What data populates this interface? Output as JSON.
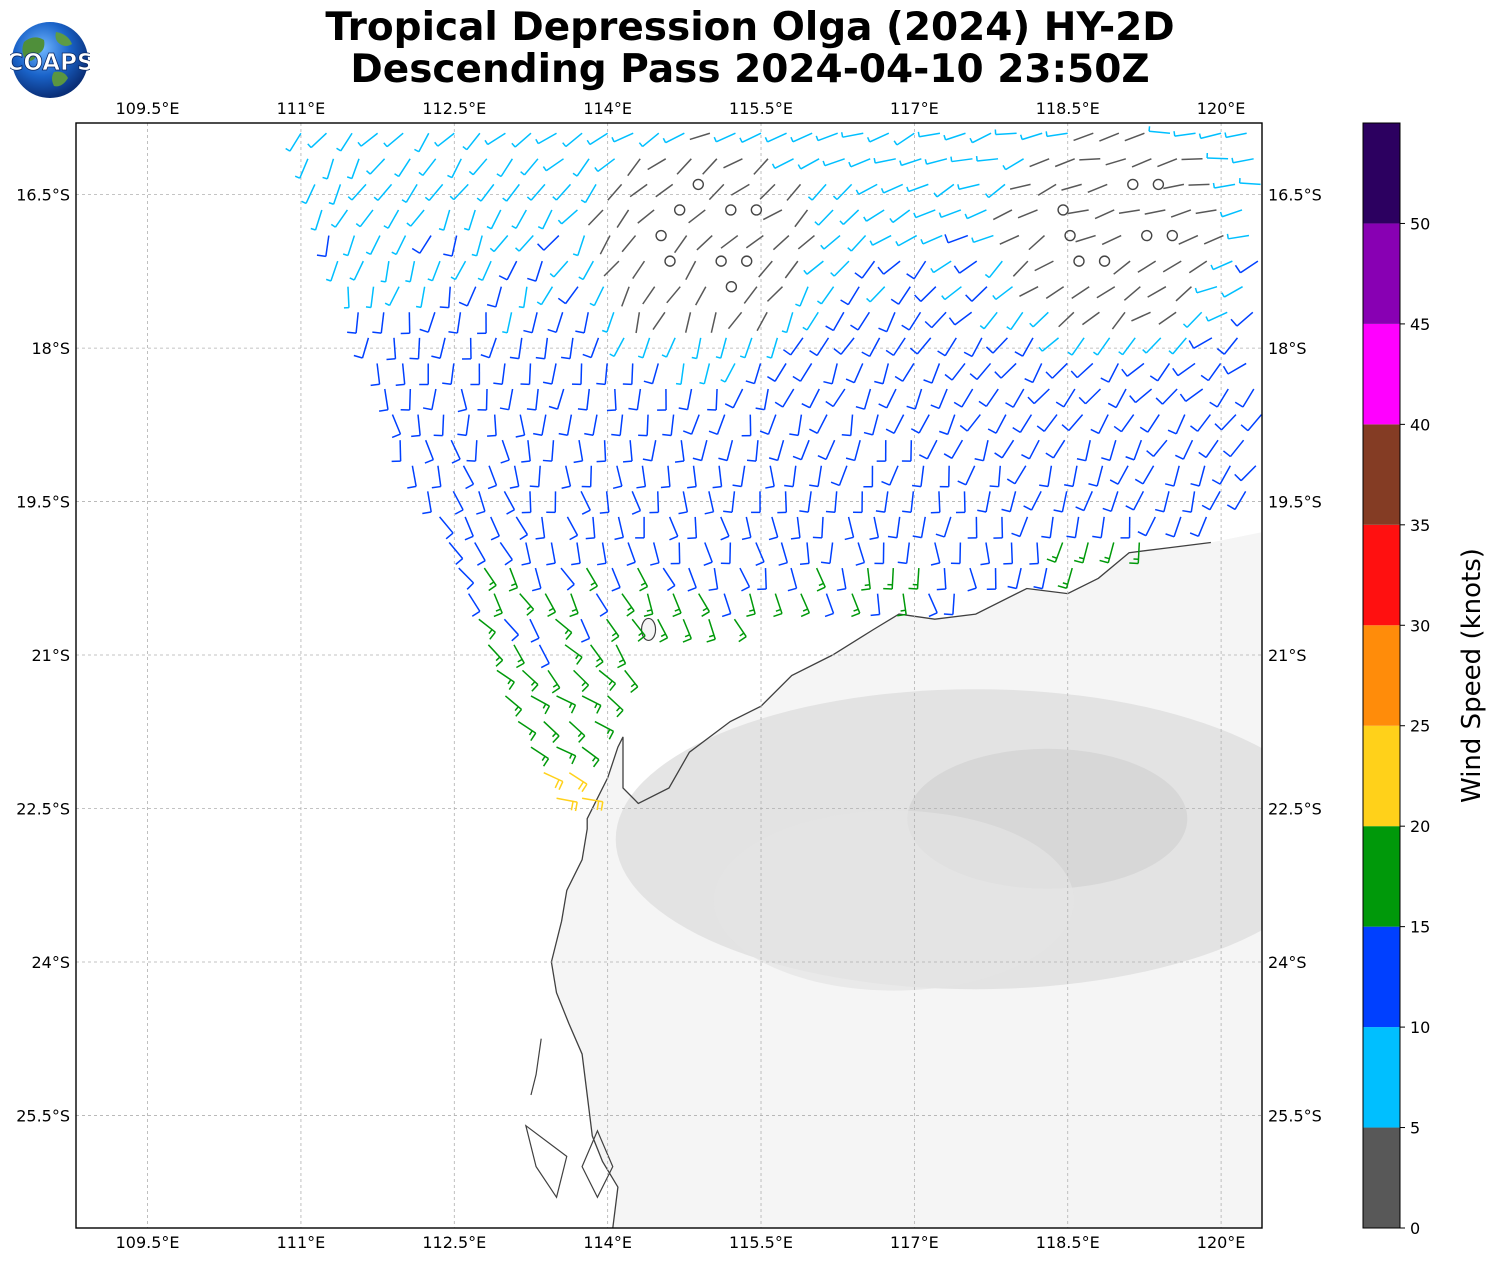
{
  "header": {
    "title_line1": "Tropical Depression Olga (2024) HY-2D",
    "title_line2": "Descending Pass 2024-04-10 23:50Z",
    "logo_text": "COAPS"
  },
  "chart_data": {
    "type": "wind-barb map",
    "title": "Tropical Depression Olga (2024) HY-2D Descending Pass 2024-04-10 23:50Z",
    "x_axis": {
      "quantity": "longitude",
      "range": [
        108.8,
        120.4
      ],
      "ticks": [
        109.5,
        111,
        112.5,
        114,
        115.5,
        117,
        118.5,
        120
      ],
      "tick_labels": [
        "109.5°E",
        "111°E",
        "112.5°E",
        "114°E",
        "115.5°E",
        "117°E",
        "118.5°E",
        "120°E"
      ]
    },
    "y_axis": {
      "quantity": "latitude",
      "range": [
        -26.6,
        -15.8
      ],
      "ticks": [
        -16.5,
        -18,
        -19.5,
        -21,
        -22.5,
        -24,
        -25.5
      ],
      "tick_labels": [
        "16.5°S",
        "18°S",
        "19.5°S",
        "21°S",
        "22.5°S",
        "24°S",
        "25.5°S"
      ]
    },
    "grid": true,
    "colorbar": {
      "label": "Wind Speed (knots)",
      "bounds": [
        0,
        5,
        10,
        15,
        20,
        25,
        30,
        35,
        40,
        45,
        50,
        55
      ],
      "tick_labels": [
        "0",
        "5",
        "10",
        "15",
        "20",
        "25",
        "30",
        "35",
        "40",
        "45",
        "50"
      ],
      "colors": [
        "#585858",
        "#00bfff",
        "#0040ff",
        "#00990a",
        "#ffd11a",
        "#ff8c0a",
        "#ff1010",
        "#843c24",
        "#ff00ff",
        "#8800b3",
        "#2c0060"
      ]
    },
    "coastline_color": "#404040",
    "swath_segments": [
      {
        "lat": -15.9,
        "lon_min": 111.0,
        "lon_max": 120.4
      },
      {
        "lat": -17.0,
        "lon_min": 111.3,
        "lon_max": 120.4
      },
      {
        "lat": -18.0,
        "lon_min": 111.7,
        "lon_max": 120.4
      },
      {
        "lat": -19.0,
        "lon_min": 112.0,
        "lon_max": 120.4
      },
      {
        "lat": -19.5,
        "lon_min": 112.3,
        "lon_max": 120.4
      },
      {
        "lat": -20.3,
        "lon_min": 112.6,
        "lon_max": 118.2
      },
      {
        "lat": -20.8,
        "lon_min": 112.8,
        "lon_max": 114.3
      },
      {
        "lat": -21.4,
        "lon_min": 113.0,
        "lon_max": 114.1
      },
      {
        "lat": -22.0,
        "lon_min": 113.3,
        "lon_max": 113.7
      },
      {
        "lat": -22.6,
        "lon_min": 113.6,
        "lon_max": 113.8
      }
    ],
    "calm_centers": [
      {
        "lat": -16.9,
        "lon": 115.0
      },
      {
        "lat": -16.8,
        "lon": 119.0
      }
    ],
    "data_step_deg": {
      "lon": 0.25,
      "lat": 0.25
    }
  }
}
